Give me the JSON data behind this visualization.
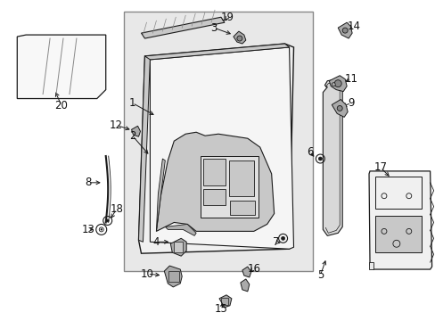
{
  "bg_color": "#ffffff",
  "lc": "#1a1a1a",
  "gray_light": "#e8e8e8",
  "gray_med": "#c8c8c8",
  "gray_dark": "#aaaaaa",
  "figsize": [
    4.89,
    3.6
  ],
  "dpi": 100
}
